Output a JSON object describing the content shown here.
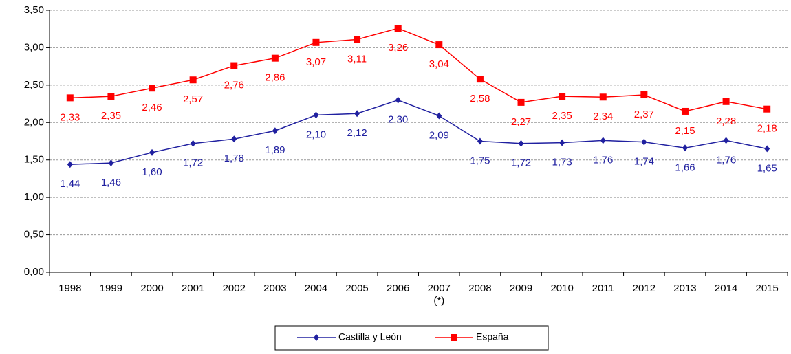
{
  "chart_data": {
    "type": "line",
    "categories": [
      "1998",
      "1999",
      "2000",
      "2001",
      "2002",
      "2003",
      "2004",
      "2005",
      "2006",
      "2007\n(*)",
      "2008",
      "2009",
      "2010",
      "2011",
      "2012",
      "2013",
      "2014",
      "2015"
    ],
    "series": [
      {
        "name": "Castilla y León",
        "color": "#2020a0",
        "marker": "diamond",
        "values": [
          1.44,
          1.46,
          1.6,
          1.72,
          1.78,
          1.89,
          2.1,
          2.12,
          2.3,
          2.09,
          1.75,
          1.72,
          1.73,
          1.76,
          1.74,
          1.66,
          1.76,
          1.65
        ],
        "value_labels": [
          "1,44",
          "1,46",
          "1,60",
          "1,72",
          "1,78",
          "1,89",
          "2,10",
          "2,12",
          "2,30",
          "2,09",
          "1,75",
          "1,72",
          "1,73",
          "1,76",
          "1,74",
          "1,66",
          "1,76",
          "1,65"
        ]
      },
      {
        "name": "España",
        "color": "#ff0000",
        "marker": "square",
        "values": [
          2.33,
          2.35,
          2.46,
          2.57,
          2.76,
          2.86,
          3.07,
          3.11,
          3.26,
          3.04,
          2.58,
          2.27,
          2.35,
          2.34,
          2.37,
          2.15,
          2.28,
          2.18
        ],
        "value_labels": [
          "2,33",
          "2,35",
          "2,46",
          "2,57",
          "2,76",
          "2,86",
          "3,07",
          "3,11",
          "3,26",
          "3,04",
          "2,58",
          "2,27",
          "2,35",
          "2,34",
          "2,37",
          "2,15",
          "2,28",
          "2,18"
        ]
      }
    ],
    "ylim": [
      0,
      3.5
    ],
    "yticks": [
      {
        "value": 0,
        "label": "0,00"
      },
      {
        "value": 0.5,
        "label": "0,50"
      },
      {
        "value": 1,
        "label": "1,00"
      },
      {
        "value": 1.5,
        "label": "1,50"
      },
      {
        "value": 2,
        "label": "2,00"
      },
      {
        "value": 2.5,
        "label": "2,50"
      },
      {
        "value": 3,
        "label": "3,00"
      },
      {
        "value": 3.5,
        "label": "3,50"
      }
    ],
    "grid": true,
    "legend": "bottom"
  }
}
